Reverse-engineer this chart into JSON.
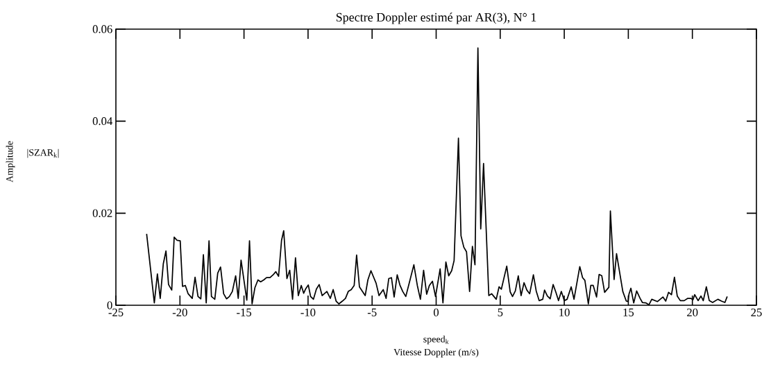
{
  "chart_data": {
    "type": "line",
    "title": "Spectre Doppler estimé par AR(3), N° 1",
    "xlabel": "Vitesse Doppler (m/s)",
    "annotations": [
      "speed$_{k}$",
      "|SZAR$_{k}$|",
      "Amplitude"
    ],
    "xlim": [
      -25,
      25
    ],
    "ylim": [
      0,
      0.06
    ],
    "xticks": [
      -25,
      -20,
      -15,
      -10,
      -5,
      0,
      5,
      10,
      15,
      20,
      25
    ],
    "yticks": [
      0,
      0.02,
      0.04,
      0.06
    ],
    "grid": false,
    "marker": "none",
    "line_style": "solid",
    "series": [
      {
        "color": "#000000",
        "x": [
          -22.6,
          -22.0,
          -21.76,
          -21.54,
          -21.3,
          -21.09,
          -20.89,
          -20.64,
          -20.45,
          -20.22,
          -19.98,
          -19.8,
          -19.58,
          -19.36,
          -19.04,
          -18.82,
          -18.59,
          -18.37,
          -18.17,
          -17.95,
          -17.73,
          -17.54,
          -17.28,
          -17.05,
          -16.83,
          -16.59,
          -16.36,
          -16.14,
          -15.91,
          -15.65,
          -15.45,
          -15.23,
          -14.78,
          -14.57,
          -14.37,
          -14.15,
          -13.91,
          -13.7,
          -13.46,
          -13.24,
          -12.97,
          -12.73,
          -12.52,
          -12.3,
          -12.07,
          -11.9,
          -11.65,
          -11.43,
          -11.21,
          -10.98,
          -10.76,
          -10.53,
          -10.34,
          -10.2,
          -9.98,
          -9.8,
          -9.58,
          -9.35,
          -9.13,
          -8.9,
          -8.53,
          -8.26,
          -8.04,
          -7.81,
          -7.59,
          -7.32,
          -7.08,
          -6.86,
          -6.63,
          -6.4,
          -6.21,
          -5.99,
          -5.54,
          -5.33,
          -5.09,
          -4.69,
          -4.46,
          -4.13,
          -3.91,
          -3.7,
          -3.49,
          -3.28,
          -3.04,
          -2.83,
          -2.61,
          -2.37,
          -2.05,
          -1.74,
          -1.47,
          -1.23,
          -0.98,
          -0.74,
          -0.53,
          -0.29,
          -0.05,
          0.31,
          0.53,
          0.76,
          0.98,
          1.21,
          1.4,
          1.74,
          1.94,
          2.16,
          2.37,
          2.61,
          2.83,
          3.03,
          3.26,
          3.48,
          3.7,
          4.11,
          4.33,
          4.69,
          4.91,
          5.09,
          5.51,
          5.78,
          5.96,
          6.18,
          6.41,
          6.63,
          6.86,
          7.08,
          7.3,
          7.59,
          7.81,
          8.04,
          8.32,
          8.46,
          8.68,
          8.9,
          9.13,
          9.35,
          9.55,
          9.77,
          9.89,
          10.0,
          10.22,
          10.54,
          10.76,
          11.21,
          11.43,
          11.61,
          11.88,
          12.07,
          12.26,
          12.52,
          12.72,
          12.93,
          13.15,
          13.48,
          13.6,
          13.89,
          14.08,
          14.57,
          14.84,
          14.98,
          15.05,
          15.2,
          15.42,
          15.65,
          15.92,
          16.1,
          16.38,
          16.61,
          16.83,
          17.28,
          17.7,
          17.92,
          18.14,
          18.37,
          18.6,
          18.82,
          19.06,
          19.36,
          19.64,
          19.87,
          20.05,
          20.18,
          20.45,
          20.67,
          20.85,
          21.09,
          21.32,
          21.58,
          21.99,
          22.27,
          22.54,
          22.72
        ],
        "values": [
          0.0155,
          0.0005,
          0.0068,
          0.0015,
          0.009,
          0.0118,
          0.0045,
          0.0033,
          0.0148,
          0.0141,
          0.014,
          0.0041,
          0.0043,
          0.0025,
          0.0015,
          0.0061,
          0.0019,
          0.0014,
          0.011,
          0.0005,
          0.014,
          0.0019,
          0.0013,
          0.007,
          0.0083,
          0.0025,
          0.0014,
          0.0019,
          0.003,
          0.0064,
          0.0015,
          0.0098,
          0.0011,
          0.014,
          0.0003,
          0.0038,
          0.0055,
          0.0051,
          0.0055,
          0.006,
          0.006,
          0.0066,
          0.0073,
          0.0063,
          0.0141,
          0.0162,
          0.0058,
          0.0076,
          0.0013,
          0.0103,
          0.0021,
          0.0043,
          0.0026,
          0.0035,
          0.0044,
          0.0019,
          0.0013,
          0.0035,
          0.0045,
          0.0021,
          0.003,
          0.0015,
          0.0034,
          0.0009,
          0.0003,
          0.0009,
          0.0015,
          0.003,
          0.0034,
          0.0043,
          0.0109,
          0.004,
          0.0021,
          0.0055,
          0.0075,
          0.0048,
          0.0021,
          0.0034,
          0.0015,
          0.0058,
          0.006,
          0.0018,
          0.0066,
          0.0044,
          0.003,
          0.0019,
          0.0054,
          0.0088,
          0.0043,
          0.0013,
          0.0076,
          0.0024,
          0.0043,
          0.0052,
          0.0019,
          0.0079,
          0.0005,
          0.0094,
          0.0064,
          0.0075,
          0.0097,
          0.0363,
          0.0151,
          0.0126,
          0.0116,
          0.003,
          0.0128,
          0.0088,
          0.0559,
          0.0166,
          0.0308,
          0.0021,
          0.0025,
          0.0013,
          0.004,
          0.0035,
          0.0085,
          0.0029,
          0.0019,
          0.0031,
          0.0064,
          0.0021,
          0.0049,
          0.0033,
          0.0025,
          0.0066,
          0.0031,
          0.001,
          0.0013,
          0.0033,
          0.002,
          0.0014,
          0.0045,
          0.0028,
          0.001,
          0.003,
          0.002,
          0.001,
          0.0013,
          0.004,
          0.0013,
          0.0084,
          0.006,
          0.0054,
          0.0003,
          0.0043,
          0.0043,
          0.0018,
          0.0067,
          0.0064,
          0.0028,
          0.0039,
          0.0205,
          0.0056,
          0.0112,
          0.003,
          0.0009,
          0.0008,
          0.0024,
          0.0037,
          0.0005,
          0.0031,
          0.0015,
          0.0006,
          0.0005,
          0.0001,
          0.0013,
          0.0008,
          0.0018,
          0.0009,
          0.0028,
          0.0023,
          0.0061,
          0.002,
          0.001,
          0.001,
          0.0015,
          0.0015,
          0.0012,
          0.0023,
          0.001,
          0.002,
          0.001,
          0.004,
          0.001,
          0.0006,
          0.0013,
          0.0009,
          0.0006,
          0.0019
        ]
      }
    ]
  }
}
